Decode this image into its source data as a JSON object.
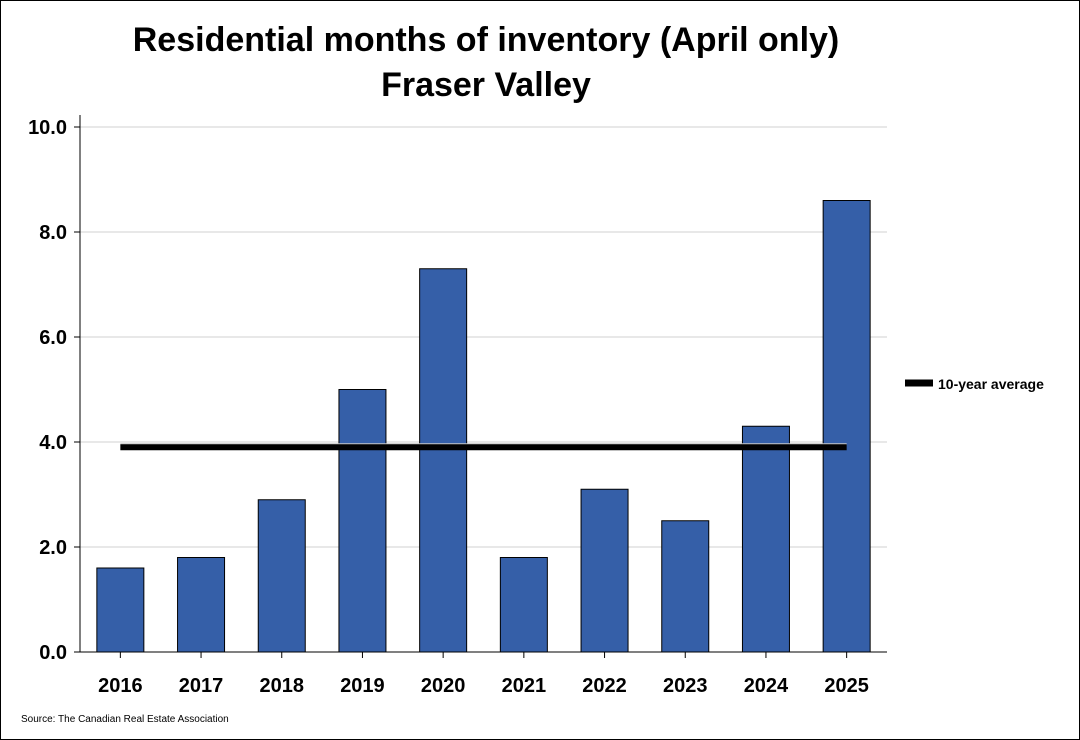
{
  "chart_data": {
    "type": "bar",
    "title": "Residential months of inventory (April only)",
    "subtitle": "Fraser Valley",
    "categories": [
      "2016",
      "2017",
      "2018",
      "2019",
      "2020",
      "2021",
      "2022",
      "2023",
      "2024",
      "2025"
    ],
    "values": [
      1.6,
      1.8,
      2.9,
      5.0,
      7.3,
      1.8,
      3.1,
      2.5,
      4.3,
      8.6
    ],
    "reference_line": {
      "name": "10-year average",
      "value": 3.9
    },
    "ylim": [
      0,
      10
    ],
    "yticks": [
      "0.0",
      "2.0",
      "4.0",
      "6.0",
      "8.0",
      "10.0"
    ],
    "xlabel": "",
    "ylabel": "",
    "grid": "horizontal",
    "legend_position": "right",
    "source": "Source: The Canadian Real Estate Association",
    "colors": {
      "bar": "#355fa8",
      "bar_edge": "#000000",
      "average": "#000000",
      "grid": "#d0d0d0"
    }
  }
}
